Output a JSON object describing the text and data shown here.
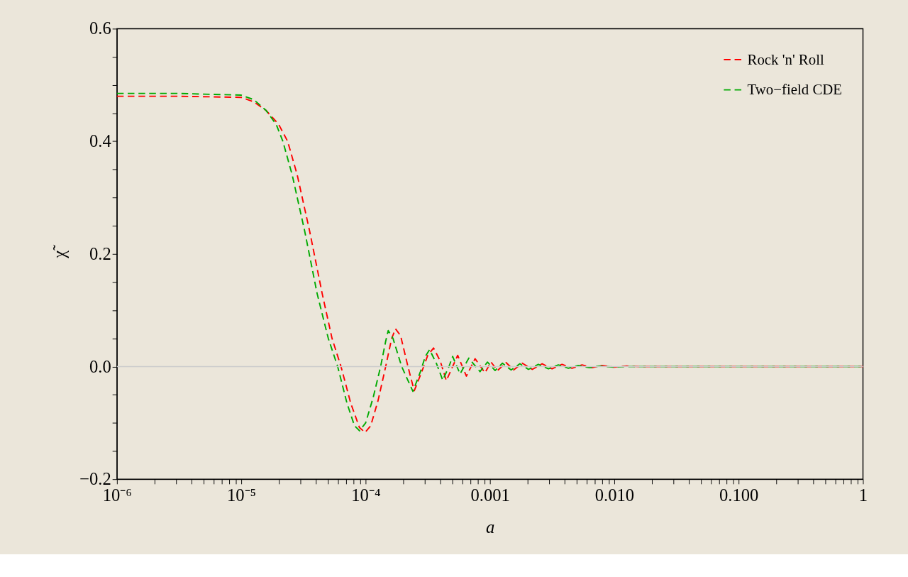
{
  "chart_data": {
    "type": "line",
    "xlabel": "a",
    "ylabel": "χ̃",
    "log": "x",
    "grid": false,
    "legend": "top right",
    "marker": "none",
    "line_style": "dashed",
    "xlim": [
      1e-06,
      1
    ],
    "ylim": [
      -0.2,
      0.6
    ],
    "xticks": [
      {
        "value": 1e-06,
        "label": "10⁻⁶"
      },
      {
        "value": 2e-06,
        "label": null
      },
      {
        "value": 3e-06,
        "label": null
      },
      {
        "value": 4e-06,
        "label": null
      },
      {
        "value": 5e-06,
        "label": null
      },
      {
        "value": 6e-06,
        "label": null
      },
      {
        "value": 7e-06,
        "label": null
      },
      {
        "value": 8e-06,
        "label": null
      },
      {
        "value": 9e-06,
        "label": null
      },
      {
        "value": 1e-05,
        "label": "10⁻⁵"
      },
      {
        "value": 2e-05,
        "label": null
      },
      {
        "value": 3e-05,
        "label": null
      },
      {
        "value": 4e-05,
        "label": null
      },
      {
        "value": 5e-05,
        "label": null
      },
      {
        "value": 6e-05,
        "label": null
      },
      {
        "value": 7e-05,
        "label": null
      },
      {
        "value": 8e-05,
        "label": null
      },
      {
        "value": 9e-05,
        "label": null
      },
      {
        "value": 0.0001,
        "label": "10⁻⁴"
      },
      {
        "value": 0.0002,
        "label": null
      },
      {
        "value": 0.0003,
        "label": null
      },
      {
        "value": 0.0004,
        "label": null
      },
      {
        "value": 0.0005,
        "label": null
      },
      {
        "value": 0.0006,
        "label": null
      },
      {
        "value": 0.0007,
        "label": null
      },
      {
        "value": 0.0008,
        "label": null
      },
      {
        "value": 0.0009,
        "label": null
      },
      0.001,
      {
        "value": 0.002,
        "label": null
      },
      {
        "value": 0.003,
        "label": null
      },
      {
        "value": 0.004,
        "label": null
      },
      {
        "value": 0.005,
        "label": null
      },
      {
        "value": 0.006,
        "label": null
      },
      {
        "value": 0.007,
        "label": null
      },
      {
        "value": 0.008,
        "label": null
      },
      {
        "value": 0.009,
        "label": null
      },
      {
        "value": 0.01,
        "label": "0.010"
      },
      {
        "value": 0.02,
        "label": null
      },
      {
        "value": 0.03,
        "label": null
      },
      {
        "value": 0.04,
        "label": null
      },
      {
        "value": 0.05,
        "label": null
      },
      {
        "value": 0.06,
        "label": null
      },
      {
        "value": 0.07,
        "label": null
      },
      {
        "value": 0.08,
        "label": null
      },
      {
        "value": 0.09,
        "label": null
      },
      {
        "value": 0.1,
        "label": "0.100"
      },
      {
        "value": 0.2,
        "label": null
      },
      {
        "value": 0.3,
        "label": null
      },
      {
        "value": 0.4,
        "label": null
      },
      {
        "value": 0.5,
        "label": null
      },
      {
        "value": 0.6,
        "label": null
      },
      {
        "value": 0.7,
        "label": null
      },
      {
        "value": 0.8,
        "label": null
      },
      {
        "value": 0.9,
        "label": null
      },
      1
    ],
    "yticks": [
      {
        "value": -0.2,
        "label": "−0.2"
      },
      {
        "value": -0.15,
        "label": null
      },
      {
        "value": -0.1,
        "label": null
      },
      {
        "value": -0.05,
        "label": null
      },
      {
        "value": 0,
        "label": "0.0"
      },
      {
        "value": 0.05,
        "label": null
      },
      {
        "value": 0.1,
        "label": null
      },
      {
        "value": 0.15,
        "label": null
      },
      0.2,
      {
        "value": 0.25,
        "label": null
      },
      {
        "value": 0.3,
        "label": null
      },
      {
        "value": 0.35,
        "label": null
      },
      0.4,
      {
        "value": 0.45,
        "label": null
      },
      {
        "value": 0.5,
        "label": null
      },
      {
        "value": 0.55,
        "label": null
      },
      0.6
    ],
    "ref_lines": [
      {
        "axis": "y",
        "value": 0,
        "color": "#cccccc"
      }
    ],
    "series": [
      {
        "name": "Rock 'n' Roll",
        "color": "#ff0000",
        "x": [
          1e-06,
          3.16e-06,
          1e-05,
          1.26e-05,
          1.58e-05,
          2e-05,
          2.36e-05,
          2.82e-05,
          3.55e-05,
          4.47e-05,
          5.37e-05,
          6.34e-05,
          7.59e-05,
          8.91e-05,
          9.89e-05,
          0.00011,
          0.000126,
          0.000145,
          0.000162,
          0.000174,
          0.000191,
          0.000219,
          0.000246,
          0.000282,
          0.000316,
          0.000352,
          0.000398,
          0.000446,
          0.000501,
          0.00055,
          0.000646,
          0.000759,
          0.000912,
          0.00102,
          0.00115,
          0.00135,
          0.00155,
          0.00182,
          0.00219,
          0.00263,
          0.00316,
          0.0038,
          0.00457,
          0.0055,
          0.00661,
          0.00794,
          0.01,
          0.0126,
          0.0158,
          1
        ],
        "values": [
          0.48,
          0.48,
          0.478,
          0.47,
          0.455,
          0.43,
          0.4,
          0.34,
          0.24,
          0.13,
          0.05,
          0.0,
          -0.065,
          -0.108,
          -0.117,
          -0.105,
          -0.06,
          0.0,
          0.05,
          0.067,
          0.055,
          0.0,
          -0.043,
          -0.01,
          0.02,
          0.033,
          0.01,
          -0.025,
          0.0,
          0.02,
          -0.017,
          0.014,
          -0.011,
          0.008,
          -0.007,
          0.007,
          -0.006,
          0.006,
          -0.005,
          0.005,
          -0.004,
          0.004,
          -0.003,
          0.003,
          -0.002,
          0.002,
          -0.001,
          0.001,
          0.0,
          0.0
        ]
      },
      {
        "name": "Two−field CDE",
        "color": "#00aa00",
        "x": [
          1e-06,
          3.16e-06,
          1e-05,
          1.26e-05,
          1.58e-05,
          1.91e-05,
          2.16e-05,
          2.57e-05,
          3.24e-05,
          4.07e-05,
          5.01e-05,
          5.96e-05,
          7.08e-05,
          8.13e-05,
          8.95e-05,
          0.0001,
          0.000115,
          0.000132,
          0.000145,
          0.000152,
          0.000166,
          0.000195,
          0.00024,
          0.000275,
          0.000302,
          0.000327,
          0.000372,
          0.000417,
          0.000468,
          0.000501,
          0.000575,
          0.000676,
          0.000832,
          0.000955,
          0.0011,
          0.00126,
          0.00148,
          0.00174,
          0.00204,
          0.00245,
          0.00295,
          0.00355,
          0.00427,
          0.00513,
          0.00631,
          0.00759,
          0.01,
          0.0126,
          1
        ],
        "values": [
          0.485,
          0.485,
          0.482,
          0.474,
          0.455,
          0.43,
          0.4,
          0.34,
          0.24,
          0.13,
          0.05,
          0.0,
          -0.065,
          -0.105,
          -0.114,
          -0.1,
          -0.055,
          0.0,
          0.045,
          0.064,
          0.05,
          0.0,
          -0.044,
          -0.01,
          0.018,
          0.03,
          0.005,
          -0.024,
          0.0,
          0.018,
          -0.013,
          0.015,
          -0.009,
          0.008,
          -0.007,
          0.006,
          -0.006,
          0.005,
          -0.005,
          0.004,
          -0.004,
          0.003,
          -0.003,
          0.002,
          -0.002,
          0.001,
          -0.001,
          0.0,
          0.0
        ]
      }
    ]
  }
}
